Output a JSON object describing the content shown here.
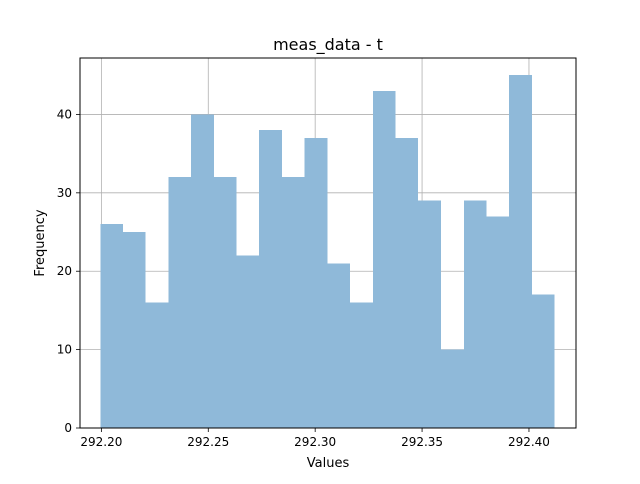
{
  "chart_data": {
    "type": "bar",
    "title": "meas_data - t",
    "xlabel": "Values",
    "ylabel": "Frequency",
    "xlim": [
      292.19,
      292.422
    ],
    "ylim": [
      0,
      47.2
    ],
    "xticks": [
      292.2,
      292.25,
      292.3,
      292.35,
      292.4
    ],
    "xtick_labels": [
      "292.20",
      "292.25",
      "292.30",
      "292.35",
      "292.40"
    ],
    "yticks": [
      0,
      10,
      20,
      30,
      40
    ],
    "ytick_labels": [
      "0",
      "10",
      "20",
      "30",
      "40"
    ],
    "grid": true,
    "bar_color": "#8fb9d9",
    "bins": [
      {
        "start": 292.1995,
        "end": 292.2101,
        "count": 26
      },
      {
        "start": 292.2101,
        "end": 292.2207,
        "count": 25
      },
      {
        "start": 292.2207,
        "end": 292.2313,
        "count": 16
      },
      {
        "start": 292.2313,
        "end": 292.242,
        "count": 32
      },
      {
        "start": 292.242,
        "end": 292.2526,
        "count": 40
      },
      {
        "start": 292.2526,
        "end": 292.2632,
        "count": 32
      },
      {
        "start": 292.2632,
        "end": 292.2738,
        "count": 22
      },
      {
        "start": 292.2738,
        "end": 292.2845,
        "count": 38
      },
      {
        "start": 292.2845,
        "end": 292.2951,
        "count": 32
      },
      {
        "start": 292.2951,
        "end": 292.3057,
        "count": 37
      },
      {
        "start": 292.3057,
        "end": 292.3164,
        "count": 21
      },
      {
        "start": 292.3164,
        "end": 292.327,
        "count": 16
      },
      {
        "start": 292.327,
        "end": 292.3376,
        "count": 43
      },
      {
        "start": 292.3376,
        "end": 292.3482,
        "count": 37
      },
      {
        "start": 292.3482,
        "end": 292.3589,
        "count": 29
      },
      {
        "start": 292.3589,
        "end": 292.3695,
        "count": 10
      },
      {
        "start": 292.3695,
        "end": 292.3801,
        "count": 29
      },
      {
        "start": 292.3801,
        "end": 292.3907,
        "count": 27
      },
      {
        "start": 292.3907,
        "end": 292.4014,
        "count": 45
      },
      {
        "start": 292.4014,
        "end": 292.412,
        "count": 17
      }
    ]
  }
}
